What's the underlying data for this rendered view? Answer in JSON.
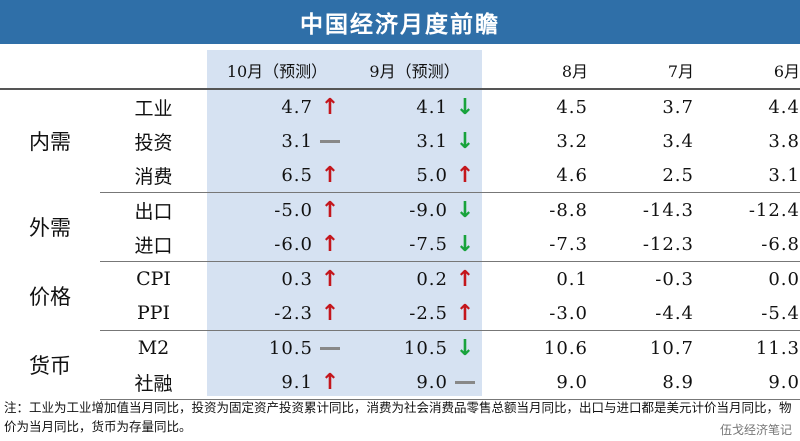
{
  "title": "中国经济月度前瞻",
  "headers": [
    "10月（预测）",
    "9月（预测）",
    "8月",
    "7月",
    "6月"
  ],
  "groups": [
    {
      "category": "内需",
      "rows": [
        {
          "label": "工业",
          "oct": "4.7",
          "oct_ind": "up",
          "sep": "4.1",
          "sep_ind": "down",
          "aug": "4.5",
          "jul": "3.7",
          "jun": "4.4"
        },
        {
          "label": "投资",
          "oct": "3.1",
          "oct_ind": "flat",
          "sep": "3.1",
          "sep_ind": "down",
          "aug": "3.2",
          "jul": "3.4",
          "jun": "3.8"
        },
        {
          "label": "消费",
          "oct": "6.5",
          "oct_ind": "up",
          "sep": "5.0",
          "sep_ind": "up",
          "aug": "4.6",
          "jul": "2.5",
          "jun": "3.1"
        }
      ]
    },
    {
      "category": "外需",
      "rows": [
        {
          "label": "出口",
          "oct": "-5.0",
          "oct_ind": "up",
          "sep": "-9.0",
          "sep_ind": "down",
          "aug": "-8.8",
          "jul": "-14.3",
          "jun": "-12.4"
        },
        {
          "label": "进口",
          "oct": "-6.0",
          "oct_ind": "up",
          "sep": "-7.5",
          "sep_ind": "down",
          "aug": "-7.3",
          "jul": "-12.3",
          "jun": "-6.8"
        }
      ]
    },
    {
      "category": "价格",
      "rows": [
        {
          "label": "CPI",
          "oct": "0.3",
          "oct_ind": "up",
          "sep": "0.2",
          "sep_ind": "up",
          "aug": "0.1",
          "jul": "-0.3",
          "jun": "0.0"
        },
        {
          "label": "PPI",
          "oct": "-2.3",
          "oct_ind": "up",
          "sep": "-2.5",
          "sep_ind": "up",
          "aug": "-3.0",
          "jul": "-4.4",
          "jun": "-5.4"
        }
      ]
    },
    {
      "category": "货币",
      "rows": [
        {
          "label": "M2",
          "oct": "10.5",
          "oct_ind": "flat",
          "sep": "10.5",
          "sep_ind": "down",
          "aug": "10.6",
          "jul": "10.7",
          "jun": "11.3"
        },
        {
          "label": "社融",
          "oct": "9.1",
          "oct_ind": "up",
          "sep": "9.0",
          "sep_ind": "flat",
          "aug": "9.0",
          "jul": "8.9",
          "jun": "9.0"
        }
      ]
    }
  ],
  "indicator_symbols": {
    "up": "arrow-up-icon",
    "down": "arrow-down-icon",
    "flat": "dash-icon"
  },
  "colors": {
    "title_bg": "#2f6fa8",
    "forecast_bg": "#d6e2f2",
    "up": "#c4161c",
    "down": "#18a33c",
    "flat": "#888888"
  },
  "note": "注：工业为工业增加值当月同比，投资为固定资产投资累计同比，消费为社会消费品零售总额当月同比，出口与进口都是美元计价当月同比，物价为当月同比，货币为存量同比。",
  "watermark": "伍戈经济笔记"
}
